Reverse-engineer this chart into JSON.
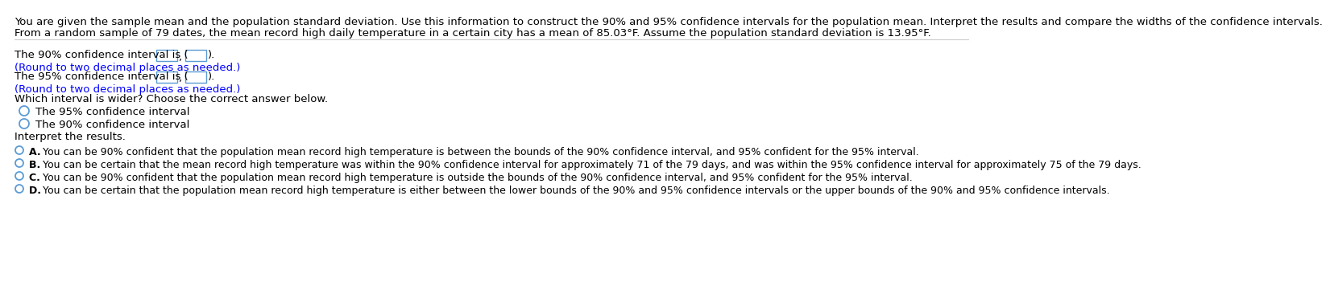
{
  "bg_color": "#ffffff",
  "text_color": "#000000",
  "blue_color": "#0000ff",
  "radio_color": "#5b9bd5",
  "input_box_color": "#5b9bd5",
  "line1": "You are given the sample mean and the population standard deviation. Use this information to construct the 90% and 95% confidence intervals for the population mean. Interpret the results and compare the widths of the confidence intervals.",
  "line2": "From a random sample of 79 dates, the mean record high daily temperature in a certain city has a mean of 85.03°F. Assume the population standard deviation is 13.95°F.",
  "section1_label": "The 90% confidence interval is (  ,  ).",
  "section1_note": "(Round to two decimal places as needed.)",
  "section2_label": "The 95% confidence interval is (  ,  ).",
  "section2_note": "(Round to two decimal places as needed.)",
  "wider_q": "Which interval is wider? Choose the correct answer below.",
  "radio1": "The 95% confidence interval",
  "radio2": "The 90% confidence interval",
  "interpret_label": "Interpret the results.",
  "optA_prefix": "A. ",
  "optA": "You can be 90% confident that the population mean record high temperature is between the bounds of the 90% confidence interval, and 95% confident for the 95% interval.",
  "optB_prefix": "B. ",
  "optB": "You can be certain that the mean record high temperature was within the 90% confidence interval for approximately 71 of the 79 days, and was within the 95% confidence interval for approximately 75 of the 79 days.",
  "optC_prefix": "C. ",
  "optC": "You can be 90% confident that the population mean record high temperature is outside the bounds of the 90% confidence interval, and 95% confident for the 95% interval.",
  "optD_prefix": "D. ",
  "optD": "You can be certain that the population mean record high temperature is either between the lower bounds of the 90% and 95% confidence intervals or the upper bounds of the 90% and 95% confidence intervals.",
  "font_size_header": 9.5,
  "font_size_body": 9.5,
  "font_size_note": 9.5,
  "font_size_options": 9.0
}
